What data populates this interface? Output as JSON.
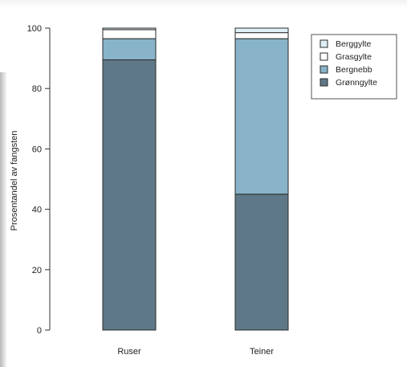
{
  "chart_data": {
    "type": "bar",
    "stacked": true,
    "categories": [
      "Ruser",
      "Teiner"
    ],
    "series": [
      {
        "name": "Grønngylte",
        "color": "#5e7887",
        "values": [
          89.5,
          45
        ]
      },
      {
        "name": "Bergnebb",
        "color": "#88b3c8",
        "values": [
          7,
          51.5
        ]
      },
      {
        "name": "Grasgylte",
        "color": "#ffffff",
        "values": [
          3,
          2
        ]
      },
      {
        "name": "Berggylte",
        "color": "#dff0f7",
        "values": [
          0.5,
          1.5
        ]
      }
    ],
    "title": "",
    "xlabel": "",
    "ylabel": "Prosentandel av fangsten",
    "ylim": [
      0,
      100
    ],
    "yticks": [
      "0",
      "20",
      "40",
      "60",
      "80",
      "100"
    ],
    "grid": false,
    "legend": {
      "placement": "top-right",
      "entries": [
        "Berggylte",
        "Grasgylte",
        "Bergnebb",
        "Grønngylte"
      ]
    }
  }
}
